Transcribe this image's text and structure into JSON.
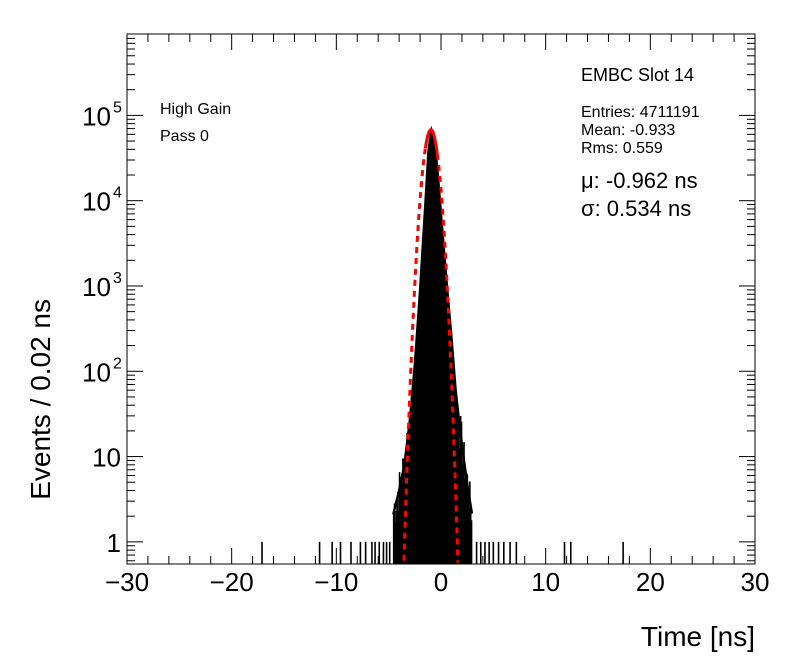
{
  "chart_data": {
    "type": "histogram",
    "xlabel": "Time [ns]",
    "ylabel": "Events / 0.02 ns",
    "xlim": [
      -30,
      30
    ],
    "ylim": [
      0.55,
      900000
    ],
    "y_scale": "log",
    "bin_width": 0.02,
    "x_ticks": [
      -30,
      -20,
      -10,
      0,
      10,
      20,
      30
    ],
    "x_tick_labels": [
      "−30",
      "−20",
      "−10",
      "0",
      "10",
      "20",
      "30"
    ],
    "y_ticks": [
      {
        "value": 1,
        "label": "1",
        "sup": ""
      },
      {
        "value": 10,
        "label": "10",
        "sup": ""
      },
      {
        "value": 100,
        "label": "10",
        "sup": "2"
      },
      {
        "value": 1000,
        "label": "10",
        "sup": "3"
      },
      {
        "value": 10000,
        "label": "10",
        "sup": "4"
      },
      {
        "value": 100000,
        "label": "10",
        "sup": "5"
      }
    ],
    "histogram": {
      "name": "",
      "color": "#000000",
      "peak_x": -0.933,
      "peak_y": 68000,
      "sigma_core": 0.55,
      "points": [
        [
          -4.6,
          2
        ],
        [
          -4.0,
          4
        ],
        [
          -3.5,
          8
        ],
        [
          -3.0,
          25
        ],
        [
          -2.5,
          120
        ],
        [
          -2.0,
          900
        ],
        [
          -1.5,
          9000
        ],
        [
          -1.2,
          38000
        ],
        [
          -0.933,
          68000
        ],
        [
          -0.6,
          50000
        ],
        [
          -0.3,
          20000
        ],
        [
          0.0,
          7000
        ],
        [
          0.3,
          2500
        ],
        [
          0.6,
          900
        ],
        [
          1.0,
          250
        ],
        [
          1.4,
          60
        ],
        [
          1.8,
          22
        ],
        [
          2.2,
          9
        ],
        [
          2.6,
          4
        ],
        [
          3.0,
          2
        ]
      ],
      "sparse_entries": [
        [
          -17.1,
          1
        ],
        [
          -11.6,
          1
        ],
        [
          -10.4,
          1
        ],
        [
          -9.6,
          1
        ],
        [
          -8.6,
          1
        ],
        [
          -7.7,
          1
        ],
        [
          -7.2,
          1
        ],
        [
          -6.6,
          1
        ],
        [
          -6.3,
          1
        ],
        [
          -5.9,
          1
        ],
        [
          -5.5,
          1
        ],
        [
          -5.2,
          1
        ],
        [
          -4.9,
          1
        ],
        [
          3.4,
          1
        ],
        [
          3.8,
          1
        ],
        [
          4.2,
          1
        ],
        [
          4.6,
          1
        ],
        [
          5.0,
          1
        ],
        [
          5.5,
          1
        ],
        [
          6.0,
          1
        ],
        [
          6.6,
          1
        ],
        [
          7.2,
          1
        ],
        [
          11.8,
          1
        ],
        [
          12.4,
          1
        ],
        [
          17.4,
          1
        ]
      ]
    },
    "fit": {
      "name": "",
      "type": "gaussian",
      "color": "#ff0000",
      "mu": -0.962,
      "sigma": 0.534,
      "amplitude": 68000,
      "x_range_solid": [
        -1.5,
        -0.35
      ]
    },
    "annotations": {
      "gain": "High Gain",
      "pass": "Pass 0",
      "stats_title": "EMBC Slot 14",
      "entries": "Entries: 4711191",
      "mean": "Mean: -0.933",
      "rms": "Rms: 0.559",
      "mu": "μ: -0.962 ns",
      "sigma": "σ: 0.534 ns"
    }
  }
}
